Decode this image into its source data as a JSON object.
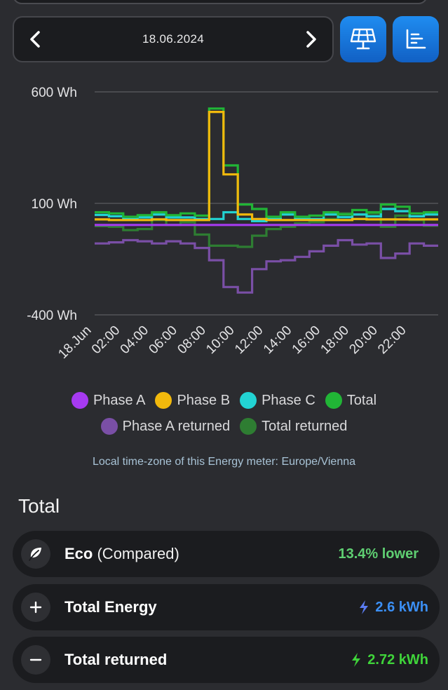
{
  "date_nav": {
    "date": "18.06.2024",
    "prev_icon": "chevron-left-icon",
    "next_icon": "chevron-right-icon"
  },
  "toolbar": {
    "solar_icon": "solar-panel-icon",
    "chart_icon": "bar-chart-icon",
    "accent": "#1a78de"
  },
  "chart_data": {
    "type": "line",
    "step": true,
    "y_unit": "Wh",
    "ylim": [
      -400,
      600
    ],
    "y_ticks": [
      {
        "value": 600,
        "label": "600 Wh"
      },
      {
        "value": 100,
        "label": "100 Wh"
      },
      {
        "value": -400,
        "label": "-400 Wh"
      }
    ],
    "x_tick_labels": [
      "18.Jun",
      "02:00",
      "04:00",
      "06:00",
      "08:00",
      "10:00",
      "12:00",
      "14:00",
      "16:00",
      "18:00",
      "20:00",
      "22:00"
    ],
    "x_hours": [
      0,
      1,
      2,
      3,
      4,
      5,
      6,
      7,
      8,
      9,
      10,
      11,
      12,
      13,
      14,
      15,
      16,
      17,
      18,
      19,
      20,
      21,
      22,
      23
    ],
    "grid": true,
    "legend_position": "bottom",
    "series": [
      {
        "name": "Total returned",
        "color": "#2e7d32",
        "values": [
          -2,
          -5,
          -20,
          -15,
          25,
          3,
          15,
          -40,
          -90,
          -90,
          -95,
          -45,
          -15,
          -5,
          10,
          15,
          30,
          55,
          30,
          55,
          -5,
          45,
          25,
          0
        ]
      },
      {
        "name": "Phase A returned",
        "color": "#7a4fa6",
        "values": [
          -80,
          -75,
          -65,
          -70,
          -80,
          -70,
          -80,
          -100,
          -155,
          -275,
          -300,
          -195,
          -160,
          -155,
          -140,
          -115,
          -90,
          -65,
          -85,
          -80,
          -145,
          -125,
          -80,
          -90
        ]
      },
      {
        "name": "Phase C",
        "color": "#22d3d3",
        "values": [
          48,
          42,
          30,
          37,
          50,
          37,
          37,
          30,
          30,
          60,
          30,
          20,
          30,
          50,
          30,
          30,
          50,
          38,
          50,
          42,
          75,
          65,
          42,
          50
        ]
      },
      {
        "name": "Total",
        "color": "#21b536",
        "values": [
          60,
          55,
          40,
          47,
          60,
          47,
          55,
          45,
          525,
          270,
          95,
          75,
          40,
          60,
          40,
          45,
          60,
          50,
          70,
          60,
          95,
          85,
          55,
          60
        ]
      },
      {
        "name": "Phase B",
        "color": "#f2b90c",
        "values": [
          28,
          25,
          25,
          25,
          28,
          25,
          25,
          25,
          510,
          230,
          50,
          30,
          25,
          25,
          25,
          25,
          25,
          25,
          30,
          28,
          28,
          28,
          28,
          28
        ]
      },
      {
        "name": "Phase A",
        "color": "#a63af0",
        "values": [
          3,
          3,
          3,
          3,
          3,
          3,
          3,
          3,
          3,
          3,
          3,
          3,
          3,
          3,
          3,
          3,
          3,
          3,
          3,
          3,
          3,
          3,
          3,
          3
        ]
      }
    ]
  },
  "legend": {
    "row1": [
      {
        "label": "Phase A",
        "color": "#a63af0"
      },
      {
        "label": "Phase B",
        "color": "#f2b90c"
      },
      {
        "label": "Phase C",
        "color": "#22d3d3"
      },
      {
        "label": "Total",
        "color": "#21b536"
      }
    ],
    "row2": [
      {
        "label": "Phase A returned",
        "color": "#7a4fa6"
      },
      {
        "label": "Total returned",
        "color": "#2e7d32"
      }
    ]
  },
  "timezone_note": "Local time-zone of this Energy meter: Europe/Vienna",
  "summary": {
    "title": "Total",
    "eco": {
      "label": "Eco",
      "sub": "(Compared)",
      "value": "13.4% lower",
      "color": "#5fcf72",
      "icon": "leaf-icon"
    },
    "total_energy": {
      "label": "Total Energy",
      "value": "2.6 kWh",
      "color": "#3b8ff5",
      "icon": "plus-icon",
      "value_icon": "lightning-icon"
    },
    "total_returned": {
      "label": "Total returned",
      "value": "2.72 kWh",
      "color": "#3fd43a",
      "icon": "minus-icon",
      "value_icon": "lightning-icon"
    }
  }
}
